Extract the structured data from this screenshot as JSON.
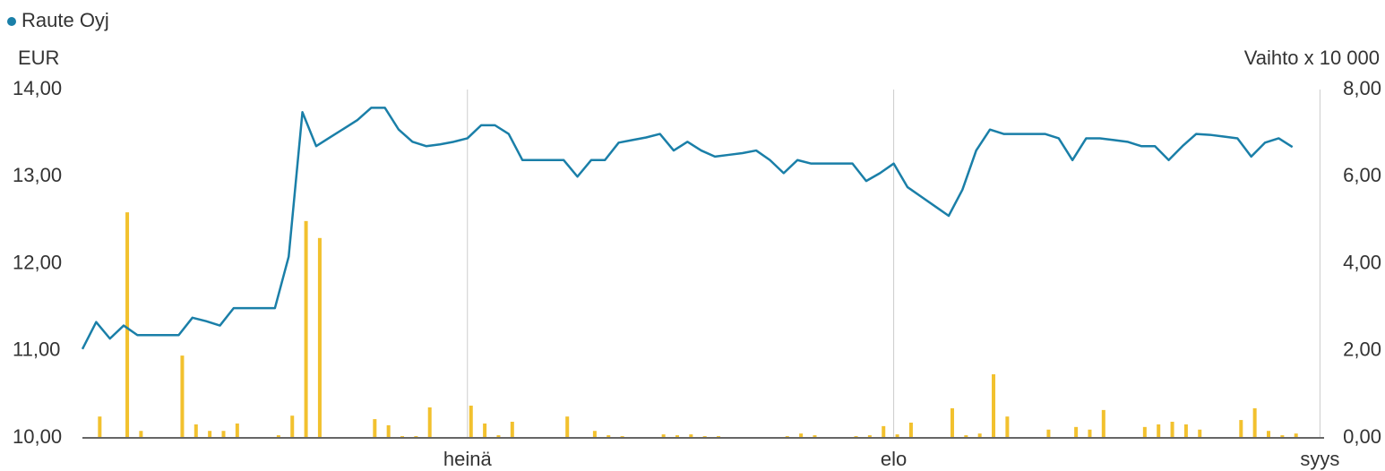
{
  "chart_data": {
    "type": "line",
    "y_label": "EUR",
    "y2_label": "Vaihto x 10 000",
    "x": [
      0,
      1,
      2,
      3,
      4,
      5,
      6,
      7,
      8,
      9,
      10,
      11,
      12,
      13,
      14,
      15,
      16,
      17,
      18,
      19,
      20,
      21,
      22,
      23,
      24,
      25,
      26,
      27,
      28,
      29,
      30,
      31,
      32,
      33,
      34,
      35,
      36,
      37,
      38,
      39,
      40,
      41,
      42,
      43,
      44,
      45,
      46,
      47,
      48,
      49,
      50,
      51,
      52,
      53,
      54,
      55,
      56,
      57,
      58,
      59,
      60,
      61,
      62,
      63,
      64,
      65,
      66,
      67,
      68,
      69,
      70,
      71,
      72,
      73,
      74,
      75,
      76,
      77,
      78,
      79,
      80,
      81,
      82,
      83,
      84,
      85,
      86,
      87,
      88
    ],
    "xlim": [
      0,
      90.3
    ],
    "xticks": [
      {
        "value": 28,
        "label": "heinä"
      },
      {
        "value": 59,
        "label": "elo"
      },
      {
        "value": 90,
        "label": "syys"
      }
    ],
    "ylim": [
      10,
      14
    ],
    "yticks": [
      {
        "value": 10,
        "label": "10,00"
      },
      {
        "value": 11,
        "label": "11,00"
      },
      {
        "value": 12,
        "label": "12,00"
      },
      {
        "value": 13,
        "label": "13,00"
      },
      {
        "value": 14,
        "label": "14,00"
      }
    ],
    "y2lim": [
      0,
      8
    ],
    "y2ticks": [
      {
        "value": 0,
        "label": "0,00"
      },
      {
        "value": 2,
        "label": "2,00"
      },
      {
        "value": 4,
        "label": "4,00"
      },
      {
        "value": 6,
        "label": "6,00"
      },
      {
        "value": 8,
        "label": "8,00"
      }
    ],
    "series": [
      {
        "name": "Raute Oyj",
        "color": "#1a7fa8",
        "values": [
          11.02,
          11.33,
          11.14,
          11.29,
          11.18,
          11.18,
          11.18,
          11.18,
          11.38,
          11.34,
          11.29,
          11.49,
          11.49,
          11.49,
          11.49,
          12.08,
          13.74,
          13.35,
          13.45,
          13.55,
          13.65,
          13.79,
          13.79,
          13.54,
          13.4,
          13.35,
          13.37,
          13.4,
          13.44,
          13.59,
          13.59,
          13.49,
          13.19,
          13.19,
          13.19,
          13.19,
          13.0,
          13.19,
          13.19,
          13.39,
          13.42,
          13.45,
          13.49,
          13.3,
          13.4,
          13.3,
          13.23,
          13.25,
          13.27,
          13.3,
          13.19,
          13.04,
          13.19,
          13.15,
          13.15,
          13.15,
          13.15,
          12.95,
          13.04,
          13.15,
          12.88,
          12.77,
          12.66,
          12.55,
          12.85,
          13.3,
          13.54,
          13.49,
          13.49,
          13.49,
          13.49,
          13.44,
          13.19,
          13.44,
          13.44,
          13.42,
          13.4,
          13.35,
          13.35,
          13.19,
          13.35,
          13.49,
          13.48,
          13.46,
          13.44,
          13.23,
          13.39,
          13.44,
          13.34
        ]
      },
      {
        "type": "bar",
        "axis": "y2",
        "color": "#f2c12e",
        "values": [
          null,
          0.49,
          null,
          5.18,
          0.16,
          null,
          null,
          1.89,
          0.31,
          0.16,
          0.16,
          0.33,
          null,
          null,
          0.06,
          0.51,
          4.98,
          4.59,
          null,
          null,
          null,
          0.43,
          0.29,
          0.04,
          0.04,
          0.7,
          null,
          null,
          0.74,
          0.33,
          0.06,
          0.37,
          null,
          null,
          null,
          0.49,
          null,
          0.16,
          0.06,
          0.04,
          null,
          null,
          0.08,
          0.06,
          0.08,
          0.04,
          0.04,
          null,
          null,
          null,
          null,
          0.04,
          0.1,
          0.06,
          null,
          null,
          0.04,
          0.06,
          0.27,
          0.08,
          0.35,
          null,
          null,
          0.68,
          0.06,
          0.1,
          1.46,
          0.49,
          null,
          null,
          0.19,
          null,
          0.25,
          0.19,
          0.64,
          null,
          null,
          0.25,
          0.31,
          0.37,
          0.31,
          0.19,
          null,
          null,
          0.41,
          0.68,
          0.16,
          0.06,
          0.1
        ]
      }
    ]
  }
}
